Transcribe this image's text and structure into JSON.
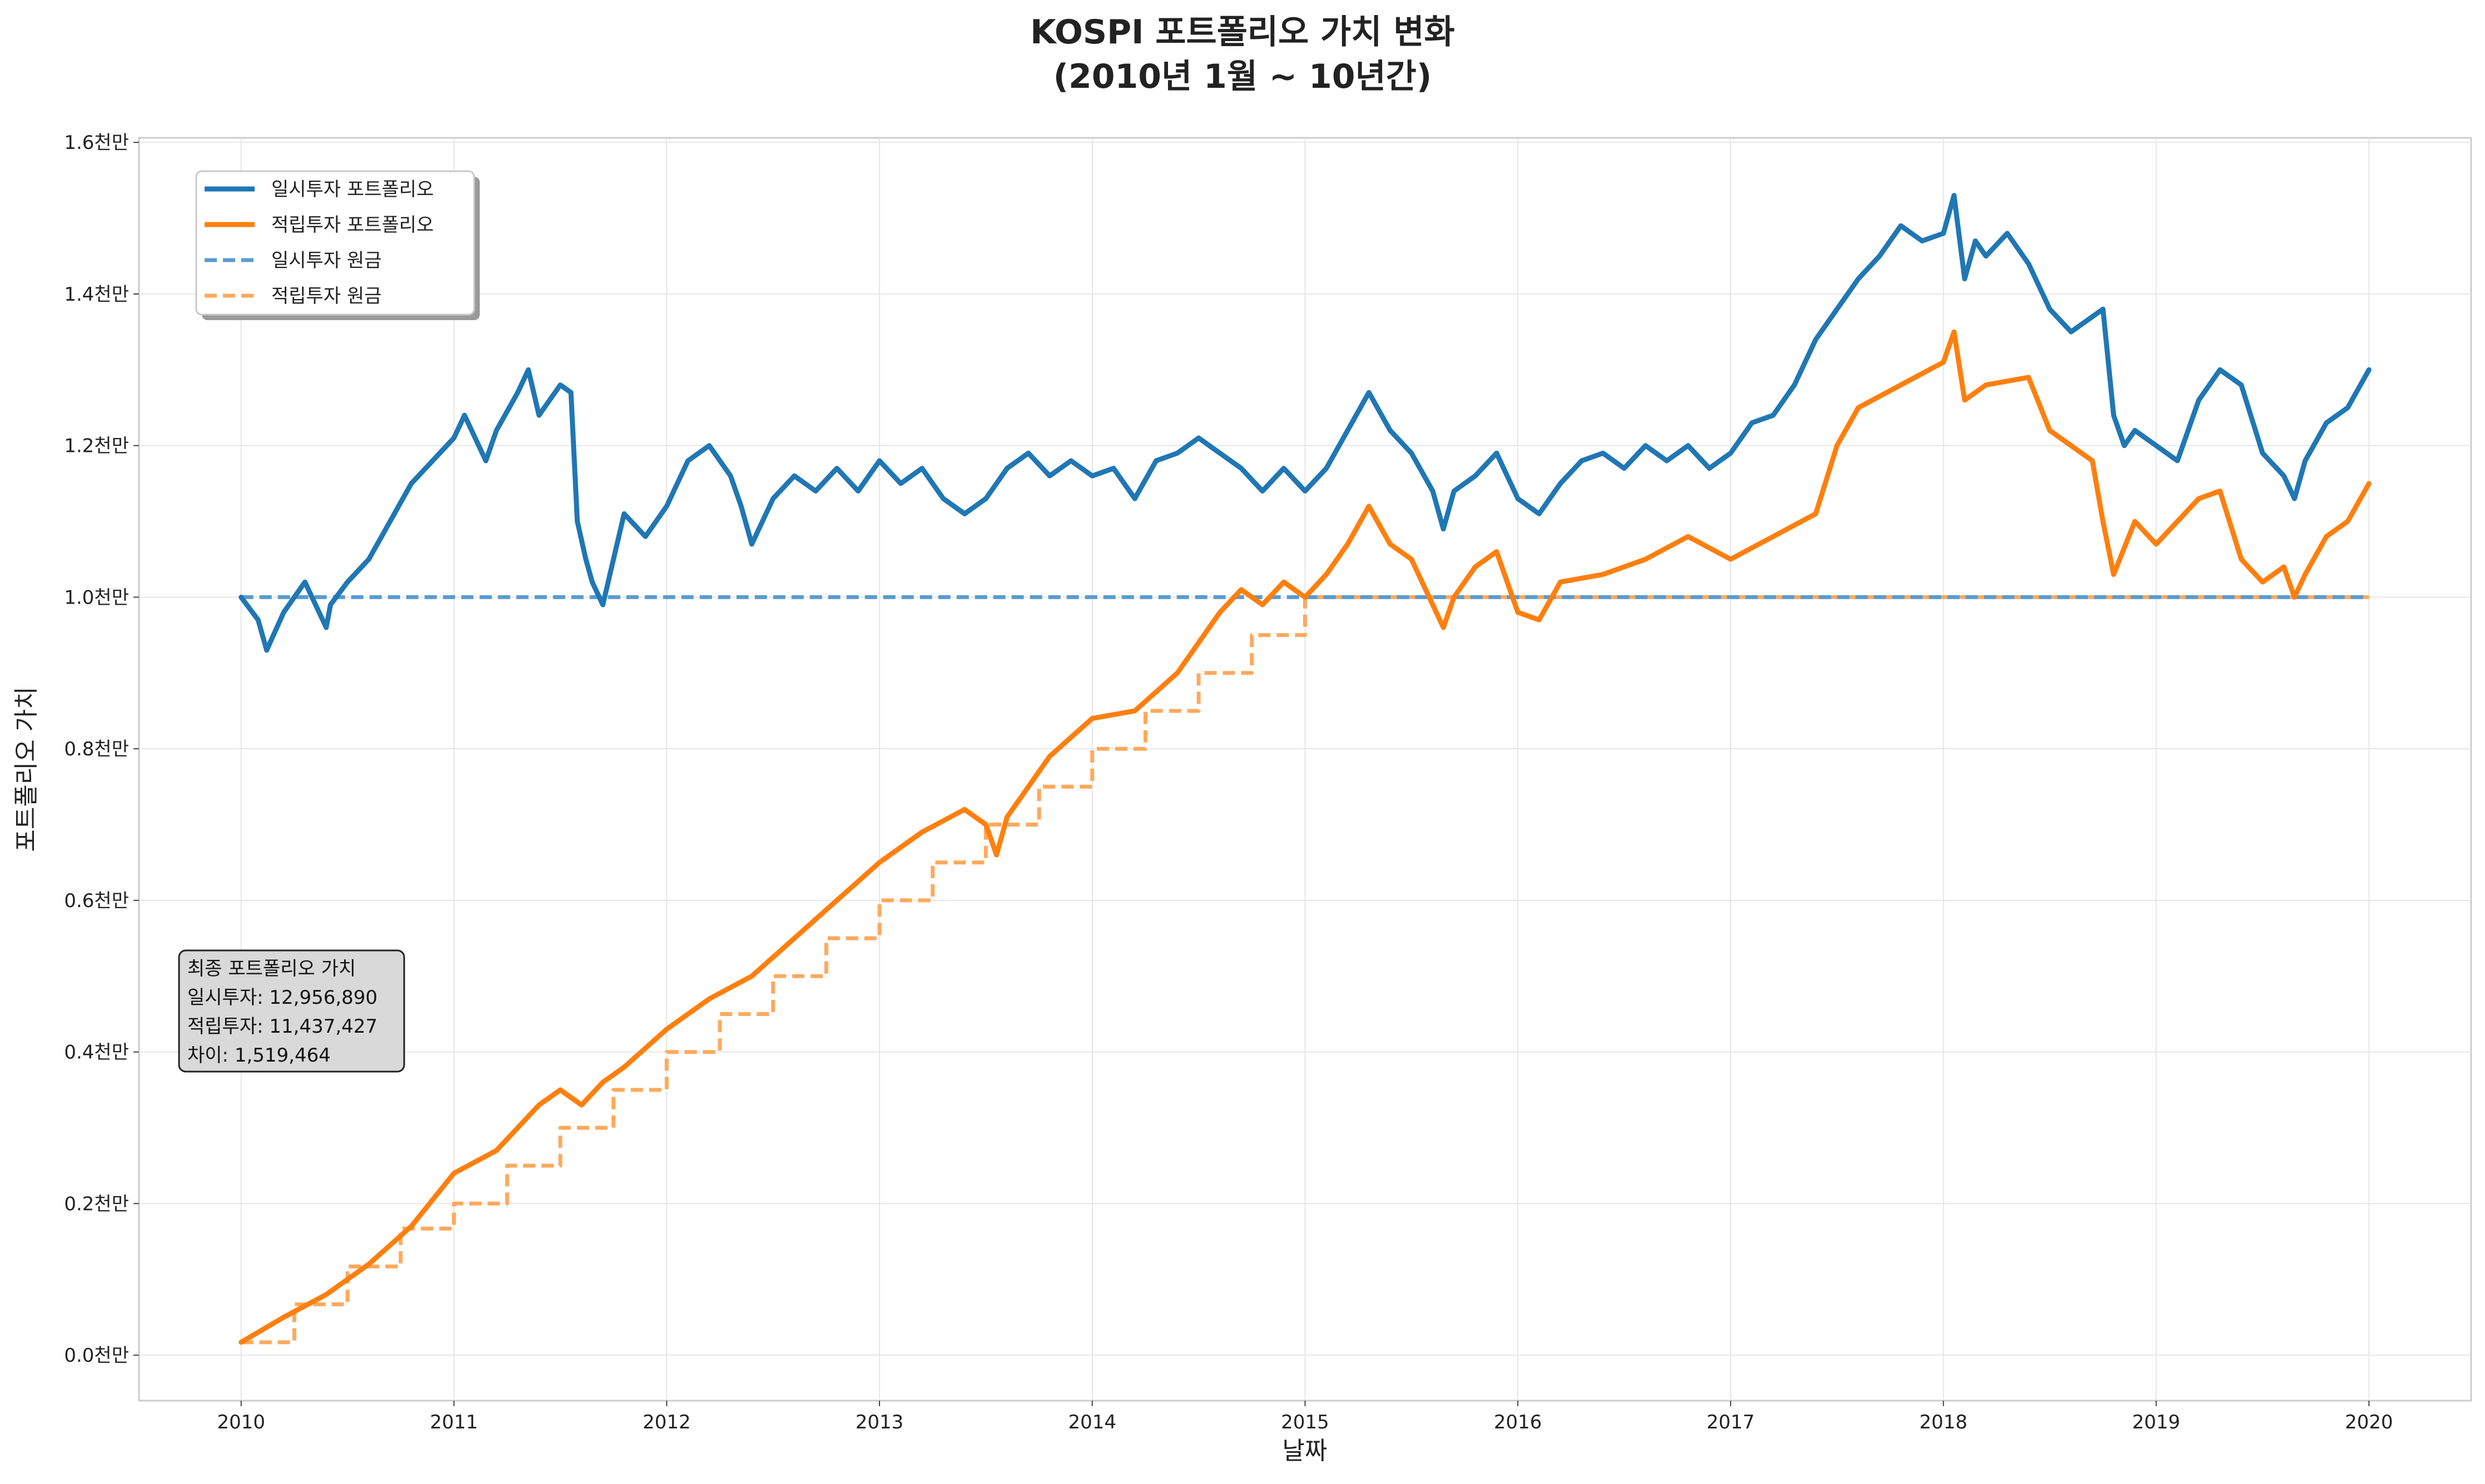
{
  "chart_data": {
    "type": "line",
    "title_line1": "KOSPI 포트폴리오 가치 변화",
    "title_line2": "(2010년 1월 ~ 10년간)",
    "xlabel": "날짜",
    "ylabel": "포트폴리오 가치",
    "xlim": [
      2009.52,
      2020.48
    ],
    "ylim": [
      -0.06,
      1.606
    ],
    "x_ticks": [
      2010,
      2011,
      2012,
      2013,
      2014,
      2015,
      2016,
      2017,
      2018,
      2019,
      2020
    ],
    "x_tick_labels": [
      "2010",
      "2011",
      "2012",
      "2013",
      "2014",
      "2015",
      "2016",
      "2017",
      "2018",
      "2019",
      "2020"
    ],
    "y_ticks": [
      0.0,
      0.2,
      0.4,
      0.6,
      0.8,
      1.0,
      1.2,
      1.4,
      1.6
    ],
    "y_tick_labels": [
      "0.0천만",
      "0.2천만",
      "0.4천만",
      "0.6천만",
      "0.8천만",
      "1.0천만",
      "1.2천만",
      "1.4천만",
      "1.6천만"
    ],
    "grid": true,
    "legend_position": "upper-left",
    "series": [
      {
        "name": "일시투자 포트폴리오",
        "style": "solid",
        "color": "#1f77b4",
        "x": [
          2010.0,
          2010.08,
          2010.12,
          2010.2,
          2010.3,
          2010.4,
          2010.42,
          2010.5,
          2010.6,
          2010.7,
          2010.8,
          2010.9,
          2011.0,
          2011.05,
          2011.15,
          2011.2,
          2011.3,
          2011.35,
          2011.4,
          2011.5,
          2011.55,
          2011.58,
          2011.62,
          2011.65,
          2011.7,
          2011.75,
          2011.8,
          2011.9,
          2012.0,
          2012.1,
          2012.2,
          2012.3,
          2012.35,
          2012.4,
          2012.5,
          2012.6,
          2012.7,
          2012.8,
          2012.9,
          2013.0,
          2013.1,
          2013.2,
          2013.3,
          2013.4,
          2013.5,
          2013.6,
          2013.7,
          2013.8,
          2013.9,
          2014.0,
          2014.1,
          2014.2,
          2014.3,
          2014.4,
          2014.5,
          2014.6,
          2014.7,
          2014.8,
          2014.9,
          2015.0,
          2015.1,
          2015.2,
          2015.3,
          2015.4,
          2015.5,
          2015.6,
          2015.65,
          2015.7,
          2015.8,
          2015.9,
          2016.0,
          2016.1,
          2016.2,
          2016.3,
          2016.4,
          2016.5,
          2016.6,
          2016.7,
          2016.8,
          2016.9,
          2017.0,
          2017.1,
          2017.2,
          2017.3,
          2017.4,
          2017.5,
          2017.6,
          2017.7,
          2017.8,
          2017.9,
          2018.0,
          2018.05,
          2018.1,
          2018.15,
          2018.2,
          2018.3,
          2018.4,
          2018.5,
          2018.6,
          2018.7,
          2018.75,
          2018.8,
          2018.85,
          2018.9,
          2019.0,
          2019.1,
          2019.2,
          2019.3,
          2019.4,
          2019.5,
          2019.6,
          2019.65,
          2019.7,
          2019.8,
          2019.9,
          2020.0
        ],
        "y": [
          1.0,
          0.97,
          0.93,
          0.98,
          1.02,
          0.96,
          0.99,
          1.02,
          1.05,
          1.1,
          1.15,
          1.18,
          1.21,
          1.24,
          1.18,
          1.22,
          1.27,
          1.3,
          1.24,
          1.28,
          1.27,
          1.1,
          1.05,
          1.02,
          0.99,
          1.05,
          1.11,
          1.08,
          1.12,
          1.18,
          1.2,
          1.16,
          1.12,
          1.07,
          1.13,
          1.16,
          1.14,
          1.17,
          1.14,
          1.18,
          1.15,
          1.17,
          1.13,
          1.11,
          1.13,
          1.17,
          1.19,
          1.16,
          1.18,
          1.16,
          1.17,
          1.13,
          1.18,
          1.19,
          1.21,
          1.19,
          1.17,
          1.14,
          1.17,
          1.14,
          1.17,
          1.22,
          1.27,
          1.22,
          1.19,
          1.14,
          1.09,
          1.14,
          1.16,
          1.19,
          1.13,
          1.11,
          1.15,
          1.18,
          1.19,
          1.17,
          1.2,
          1.18,
          1.2,
          1.17,
          1.19,
          1.23,
          1.24,
          1.28,
          1.34,
          1.38,
          1.42,
          1.45,
          1.49,
          1.47,
          1.48,
          1.53,
          1.42,
          1.47,
          1.45,
          1.48,
          1.44,
          1.38,
          1.35,
          1.37,
          1.38,
          1.24,
          1.2,
          1.22,
          1.2,
          1.18,
          1.26,
          1.3,
          1.28,
          1.19,
          1.16,
          1.13,
          1.18,
          1.23,
          1.25,
          1.3
        ]
      },
      {
        "name": "적립투자 포트폴리오",
        "style": "solid",
        "color": "#ff7f0e",
        "x": [
          2010.0,
          2010.2,
          2010.4,
          2010.6,
          2010.8,
          2011.0,
          2011.2,
          2011.4,
          2011.5,
          2011.6,
          2011.7,
          2011.8,
          2012.0,
          2012.2,
          2012.4,
          2012.6,
          2012.8,
          2013.0,
          2013.2,
          2013.4,
          2013.5,
          2013.55,
          2013.6,
          2013.8,
          2014.0,
          2014.2,
          2014.4,
          2014.6,
          2014.7,
          2014.8,
          2014.9,
          2015.0,
          2015.1,
          2015.2,
          2015.3,
          2015.4,
          2015.5,
          2015.6,
          2015.65,
          2015.7,
          2015.8,
          2015.9,
          2016.0,
          2016.1,
          2016.2,
          2016.4,
          2016.6,
          2016.8,
          2017.0,
          2017.2,
          2017.4,
          2017.5,
          2017.6,
          2017.8,
          2018.0,
          2018.05,
          2018.1,
          2018.2,
          2018.4,
          2018.5,
          2018.6,
          2018.7,
          2018.75,
          2018.8,
          2018.9,
          2019.0,
          2019.2,
          2019.3,
          2019.4,
          2019.5,
          2019.6,
          2019.65,
          2019.7,
          2019.8,
          2019.9,
          2020.0
        ],
        "y": [
          0.017,
          0.05,
          0.08,
          0.12,
          0.17,
          0.24,
          0.27,
          0.33,
          0.35,
          0.33,
          0.36,
          0.38,
          0.43,
          0.47,
          0.5,
          0.55,
          0.6,
          0.65,
          0.69,
          0.72,
          0.7,
          0.66,
          0.71,
          0.79,
          0.84,
          0.85,
          0.9,
          0.98,
          1.01,
          0.99,
          1.02,
          1.0,
          1.03,
          1.07,
          1.12,
          1.07,
          1.05,
          0.99,
          0.96,
          1.0,
          1.04,
          1.06,
          0.98,
          0.97,
          1.02,
          1.03,
          1.05,
          1.08,
          1.05,
          1.08,
          1.11,
          1.2,
          1.25,
          1.28,
          1.31,
          1.35,
          1.26,
          1.28,
          1.29,
          1.22,
          1.2,
          1.18,
          1.1,
          1.03,
          1.1,
          1.07,
          1.13,
          1.14,
          1.05,
          1.02,
          1.04,
          1.0,
          1.03,
          1.08,
          1.1,
          1.15
        ]
      },
      {
        "name": "일시투자 원금",
        "style": "dashed",
        "color": "#5a9bd0",
        "x": [
          2010.0,
          2020.0
        ],
        "y": [
          1.0,
          1.0
        ]
      },
      {
        "name": "적립투자 원금",
        "style": "dashed",
        "color": "#ffa95c",
        "x": [
          2010.0,
          2010.25,
          2010.5,
          2010.75,
          2011.0,
          2011.25,
          2011.5,
          2011.75,
          2012.0,
          2012.25,
          2012.5,
          2012.75,
          2013.0,
          2013.25,
          2013.5,
          2013.75,
          2014.0,
          2014.25,
          2014.5,
          2014.75,
          2015.0,
          2020.0
        ],
        "y": [
          0.017,
          0.067,
          0.117,
          0.167,
          0.2,
          0.25,
          0.3,
          0.35,
          0.4,
          0.45,
          0.5,
          0.55,
          0.6,
          0.65,
          0.7,
          0.75,
          0.8,
          0.85,
          0.9,
          0.95,
          1.0,
          1.0
        ]
      }
    ],
    "summary_box": {
      "title": "최종 포트폴리오 가치",
      "line1": "일시투자: 12,956,890",
      "line2": "적립투자: 11,437,427",
      "line3": "차이: 1,519,464"
    }
  }
}
